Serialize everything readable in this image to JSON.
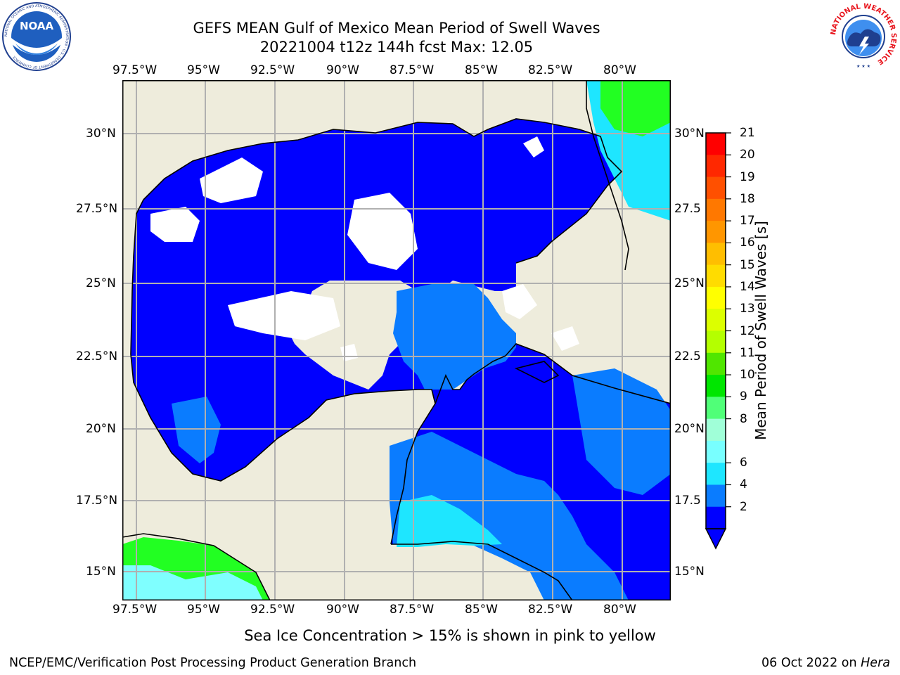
{
  "title": {
    "line1": "GEFS MEAN Gulf of Mexico Mean Period of Swell Waves",
    "line2": "20221004 t12z 144h fcst   Max: 12.05"
  },
  "logos": {
    "noaa_text": "NOAA",
    "noaa_ring": "NATIONAL OCEANIC AND ATMOSPHERIC ADMINISTRATION · U.S. DEPARTMENT OF COMMERCE",
    "nws_ring": "NATIONAL WEATHER SERVICE"
  },
  "map": {
    "lon_labels": [
      "97.5°W",
      "95°W",
      "92.5°W",
      "90°W",
      "87.5°W",
      "85°W",
      "82.5°W",
      "80°W"
    ],
    "lat_labels_left": [
      "30°N",
      "27.5°N",
      "25°N",
      "22.5°N",
      "20°N",
      "17.5°N",
      "15°N"
    ],
    "lat_labels_right": [
      "30°N",
      "27.5",
      "25°N",
      "22.5",
      "20°N",
      "17.5",
      "15°N"
    ],
    "lon_range": [
      -98,
      -78.3
    ],
    "lat_range": [
      14,
      31.9
    ],
    "grid": true,
    "colors": {
      "land": "#eeecdc",
      "sea_2_4s": "#0000ff",
      "sea_4_6s": "#0a7cff",
      "sea_6_8s": "#1ee6ff",
      "sea_8_10s": "#7fffff",
      "sea_10_11s": "#22ff22",
      "no_data": "#ffffff"
    }
  },
  "colorbar": {
    "label": "Mean Period of Swell Waves [s]",
    "ticks": [
      "21",
      "20",
      "19",
      "18",
      "17",
      "16",
      "15",
      "14",
      "13",
      "12",
      "11",
      "10",
      "9",
      "8",
      "6",
      "4",
      "2"
    ],
    "colors": [
      "#ff0000",
      "#ff2800",
      "#ff5000",
      "#ff7800",
      "#ff9600",
      "#ffbe00",
      "#ffdc00",
      "#ffff00",
      "#dcff00",
      "#b4ff00",
      "#50e600",
      "#00e600",
      "#50ff78",
      "#a0ffd8",
      "#78ffff",
      "#1ee6ff",
      "#0a7cff",
      "#0000ff"
    ]
  },
  "note": "Sea Ice Concentration > 15% is shown in pink to yellow",
  "footer": {
    "left": "NCEP/EMC/Verification Post Processing Product Generation Branch",
    "right_date": "06 Oct 2022 on ",
    "right_host": "Hera"
  }
}
